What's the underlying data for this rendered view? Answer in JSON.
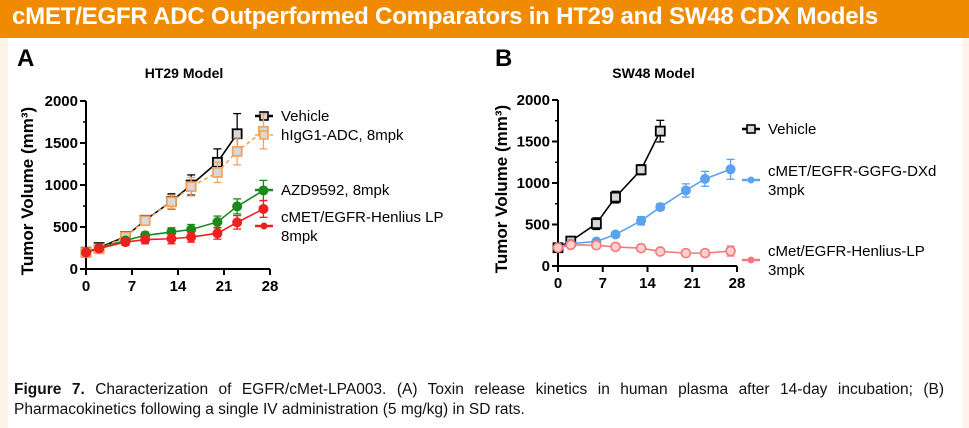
{
  "banner": {
    "title": "cMET/EGFR ADC Outperformed Comparators in HT29 and SW48 CDX Models"
  },
  "panels": {
    "a_label": "A",
    "b_label": "B"
  },
  "caption": {
    "lead": "Figure 7.",
    "text": " Characterization of EGFR/cMet-LPA003. (A) Toxin release kinetics in human plasma after 14-day incubation; (B) Pharmacokinetics following a single IV administration (5 mg/kg) in SD rats."
  },
  "chart_data": [
    {
      "type": "line",
      "title": "HT29 Model",
      "xlabel": "",
      "ylabel": "Tumor Volume (mm³)",
      "xlim": [
        0,
        28
      ],
      "ylim": [
        0,
        2000
      ],
      "x_ticks": [
        "0",
        "7",
        "14",
        "21",
        "28"
      ],
      "y_ticks": [
        "0",
        "500",
        "1000",
        "1500",
        "2000"
      ],
      "grid": false,
      "legend": "right",
      "series": [
        {
          "name": "Vehicle",
          "legend_lines": [
            "Vehicle"
          ],
          "color": "#000000",
          "marker": "square-open",
          "dashed": false,
          "x": [
            0,
            2,
            6,
            9,
            13,
            16,
            20,
            23
          ],
          "y": [
            200,
            255,
            385,
            580,
            805,
            1000,
            1270,
            1610
          ],
          "err": [
            20,
            20,
            30,
            50,
            90,
            120,
            160,
            240
          ]
        },
        {
          "name": "hIgG1-ADC, 8mpk",
          "legend_lines": [
            "hIgG1-ADC, 8mpk"
          ],
          "color": "#f4a460",
          "marker": "square-open",
          "dashed": true,
          "x": [
            0,
            2,
            6,
            9,
            13,
            16,
            20,
            23,
            27
          ],
          "y": [
            195,
            240,
            380,
            575,
            800,
            980,
            1150,
            1400,
            1640
          ],
          "err": [
            20,
            20,
            30,
            50,
            80,
            110,
            120,
            160,
            210
          ]
        },
        {
          "name": "AZD9592, 8mpk",
          "legend_lines": [
            "AZD9592, 8mpk"
          ],
          "color": "#1a8a1a",
          "marker": "circle",
          "dashed": false,
          "x": [
            0,
            2,
            6,
            9,
            13,
            16,
            20,
            23,
            27
          ],
          "y": [
            200,
            250,
            340,
            400,
            440,
            470,
            560,
            745,
            935
          ],
          "err": [
            15,
            15,
            30,
            40,
            50,
            60,
            70,
            90,
            120
          ]
        },
        {
          "name": "cMET/EGFR-Henlius LP 8mpk",
          "legend_lines": [
            "cMET/EGFR-Henlius LP",
            "8mpk"
          ],
          "color": "#ee2020",
          "marker": "circle",
          "dashed": false,
          "x": [
            0,
            2,
            6,
            9,
            13,
            16,
            20,
            23,
            27
          ],
          "y": [
            195,
            245,
            320,
            350,
            360,
            380,
            425,
            555,
            715
          ],
          "err": [
            15,
            15,
            40,
            50,
            60,
            60,
            70,
            80,
            100
          ]
        }
      ]
    },
    {
      "type": "line",
      "title": "SW48 Model",
      "xlabel": "",
      "ylabel": "Tumor Volume (mm³)",
      "xlim": [
        0,
        28
      ],
      "ylim": [
        0,
        2000
      ],
      "x_ticks": [
        "0",
        "7",
        "14",
        "21",
        "28"
      ],
      "y_ticks": [
        "0",
        "500",
        "1000",
        "1500",
        "2000"
      ],
      "grid": false,
      "legend": "right",
      "series": [
        {
          "name": "Vehicle",
          "legend_lines": [
            "Vehicle"
          ],
          "color": "#000000",
          "marker": "square-open",
          "dashed": false,
          "x": [
            0,
            2,
            6,
            9,
            13,
            16
          ],
          "y": [
            220,
            300,
            510,
            830,
            1160,
            1625
          ],
          "err": [
            15,
            20,
            70,
            70,
            60,
            130
          ]
        },
        {
          "name": "cMET/EGFR-GGFG-DXd 3mpk",
          "legend_lines": [
            "cMET/EGFR-GGFG-DXd",
            "3mpk"
          ],
          "color": "#5ba3ee",
          "marker": "circle",
          "dashed": false,
          "x": [
            0,
            2,
            6,
            9,
            13,
            16,
            20,
            23,
            27
          ],
          "y": [
            225,
            270,
            295,
            380,
            545,
            710,
            910,
            1050,
            1165
          ],
          "err": [
            15,
            15,
            20,
            30,
            50,
            40,
            80,
            90,
            120
          ]
        },
        {
          "name": "cMet/EGFR-Henlius-LP 3mpk",
          "legend_lines": [
            "cMet/EGFR-Henlius-LP",
            "3mpk"
          ],
          "color": "#f47a7a",
          "marker": "circle-open",
          "dashed": false,
          "x": [
            0,
            2,
            6,
            9,
            13,
            16,
            20,
            23,
            27
          ],
          "y": [
            220,
            255,
            250,
            230,
            215,
            175,
            155,
            155,
            180
          ],
          "err": [
            15,
            15,
            30,
            40,
            40,
            20,
            20,
            30,
            60
          ]
        }
      ]
    }
  ]
}
